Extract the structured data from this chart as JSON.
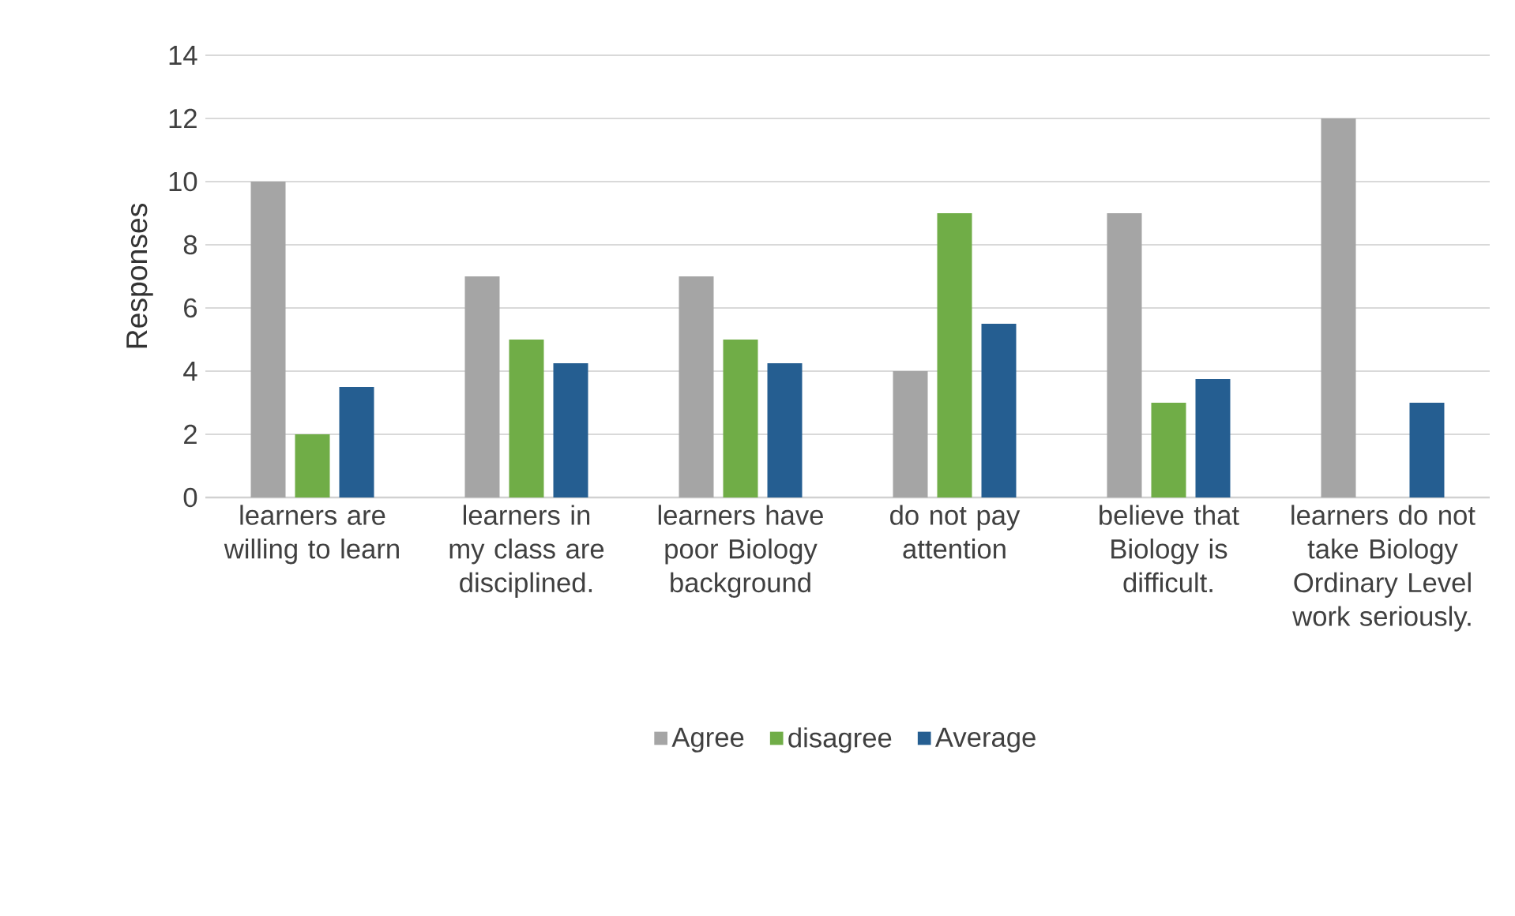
{
  "chart_data": {
    "type": "bar",
    "ylabel": "Responses",
    "categories": [
      "learners are willing to learn",
      "learners in my class are disciplined.",
      "learners have poor Biology background",
      "do not pay attention",
      "believe that Biology is difficult.",
      "learners do not take Biology Ordinary Level work seriously."
    ],
    "series": [
      {
        "name": "Agree",
        "color": "#a5a5a5",
        "values": [
          10,
          7,
          7,
          4,
          9,
          12
        ]
      },
      {
        "name": "disagree",
        "color": "#70ad47",
        "values": [
          2,
          5,
          5,
          9,
          3,
          0
        ]
      },
      {
        "name": "Average",
        "color": "#255e91",
        "values": [
          3.5,
          4.25,
          4.25,
          5.5,
          3.75,
          3
        ]
      }
    ],
    "ylim": [
      0,
      14
    ],
    "yticks": [
      0,
      2,
      4,
      6,
      8,
      10,
      12,
      14
    ],
    "grid": "y",
    "legend": "bottom"
  }
}
